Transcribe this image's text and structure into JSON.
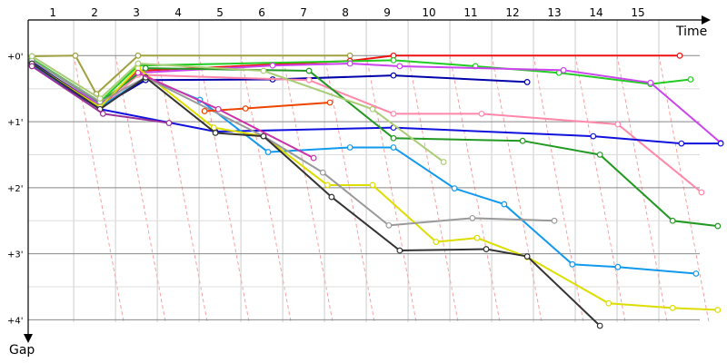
{
  "chart_data": {
    "type": "line",
    "x_label": "Time",
    "y_label": "Gap",
    "xlim": [
      -0.09,
      16.5
    ],
    "ylim": [
      -0.54,
      4.31
    ],
    "xticks": [
      {
        "value": 1,
        "label": "1"
      },
      {
        "value": 2,
        "label": "2"
      },
      {
        "value": 3,
        "label": "3"
      },
      {
        "value": 4,
        "label": "4"
      },
      {
        "value": 5,
        "label": "5"
      },
      {
        "value": 6,
        "label": "6"
      },
      {
        "value": 7,
        "label": "7"
      },
      {
        "value": 8,
        "label": "8"
      },
      {
        "value": 9,
        "label": "9"
      },
      {
        "value": 10,
        "label": "10"
      },
      {
        "value": 11,
        "label": "11"
      },
      {
        "value": 12,
        "label": "12"
      },
      {
        "value": 13,
        "label": "13"
      },
      {
        "value": 14,
        "label": "14"
      },
      {
        "value": 15,
        "label": "15"
      }
    ],
    "yticks": [
      {
        "value": 0,
        "label": "+0'"
      },
      {
        "value": 1,
        "label": "+1'"
      },
      {
        "value": 2,
        "label": "+2'"
      },
      {
        "value": 3,
        "label": "+3'"
      },
      {
        "value": 4,
        "label": "+4'"
      }
    ],
    "grid": true,
    "series": [
      {
        "color": "#a0a040",
        "x": [
          0,
          1.04,
          1.54,
          2.54,
          7.61
        ],
        "values": [
          0.01,
          0,
          0.58,
          0,
          0
        ]
      },
      {
        "color": "#ee1111",
        "x": [
          0,
          1.63,
          2.54,
          7.61,
          8.65,
          15.5
        ],
        "values": [
          0.1,
          0.78,
          0.23,
          0.08,
          0,
          0
        ]
      },
      {
        "color": "#22cc22",
        "x": [
          0,
          1.63,
          2.54,
          8.65,
          10.61,
          12.61,
          14.8,
          15.76
        ],
        "values": [
          0.05,
          0.7,
          0.15,
          0.07,
          0.16,
          0.26,
          0.43,
          0.36
        ]
      },
      {
        "color": "#cc44ee",
        "x": [
          0,
          1.63,
          2.54,
          5.76,
          7.61,
          8.8,
          12.72,
          14.8,
          16.48
        ],
        "values": [
          0.12,
          0.74,
          0.26,
          0.15,
          0.12,
          0.16,
          0.22,
          0.41,
          1.32
        ]
      },
      {
        "color": "#0000aa",
        "x": [
          0,
          1.63,
          2.72,
          5.76,
          8.65,
          11.85
        ],
        "values": [
          0.1,
          0.78,
          0.37,
          0.36,
          0.3,
          0.4
        ]
      },
      {
        "color": "#ff88aa",
        "x": [
          0,
          1.63,
          2.54,
          6.63,
          8.65,
          10.76,
          14.02,
          16.02
        ],
        "values": [
          0.12,
          0.81,
          0.29,
          0.37,
          0.88,
          0.88,
          1.04,
          2.07
        ]
      },
      {
        "color": "#1111dd",
        "x": [
          0,
          1.63,
          4.39,
          8.65,
          13.43,
          15.54,
          16.48
        ],
        "values": [
          0.15,
          0.81,
          1.15,
          1.09,
          1.22,
          1.33,
          1.33
        ]
      },
      {
        "color": "#229922",
        "x": [
          0,
          1.63,
          2.72,
          6.63,
          8.65,
          11.74,
          13.59,
          15.33,
          16.41
        ],
        "values": [
          0.07,
          0.71,
          0.19,
          0.23,
          1.25,
          1.29,
          1.5,
          2.5,
          2.58
        ]
      },
      {
        "color": "#1199ee",
        "x": [
          0,
          1.63,
          2.72,
          4.02,
          5.65,
          7.61,
          8.65,
          10.11,
          11.3,
          12.93,
          14.02,
          15.89
        ],
        "values": [
          0.15,
          0.78,
          0.33,
          0.67,
          1.46,
          1.39,
          1.39,
          2.01,
          2.25,
          3.16,
          3.2,
          3.3
        ]
      },
      {
        "color": "#dddd00",
        "x": [
          0,
          1.63,
          2.54,
          4.35,
          5.54,
          7.07,
          8.15,
          9.67,
          10.65,
          11.85,
          13.8,
          15.33,
          16.41
        ],
        "values": [
          0.12,
          0.78,
          0.19,
          1.09,
          1.22,
          1.96,
          1.96,
          2.82,
          2.76,
          3.05,
          3.75,
          3.82,
          3.85
        ]
      },
      {
        "color": "#999999",
        "x": [
          0,
          1.63,
          2.72,
          5.54,
          6.96,
          8.54,
          10.54,
          12.5
        ],
        "values": [
          0.07,
          0.7,
          0.33,
          1.22,
          1.77,
          2.57,
          2.46,
          2.5
        ]
      },
      {
        "color": "#333333",
        "x": [
          0,
          1.63,
          2.72,
          4.39,
          5.54,
          7.17,
          8.8,
          10.87,
          11.85,
          13.59
        ],
        "values": [
          0.12,
          0.81,
          0.33,
          1.17,
          1.22,
          2.14,
          2.95,
          2.93,
          3.04,
          4.09
        ]
      },
      {
        "color": "#aacc77",
        "x": [
          0,
          1.63,
          2.54,
          5.54,
          8.15,
          9.85
        ],
        "values": [
          0.01,
          0.65,
          0.12,
          0.23,
          0.81,
          1.61
        ]
      },
      {
        "color": "#ee4400",
        "x": [
          4.13,
          5.11,
          7.13
        ],
        "values": [
          0.84,
          0.8,
          0.71
        ]
      },
      {
        "color": "#993399",
        "x": [
          0,
          1.7,
          3.28
        ],
        "values": [
          0.16,
          0.88,
          1.02
        ]
      },
      {
        "color": "#cc33aa",
        "x": [
          2.54,
          4.46,
          6.74
        ],
        "values": [
          0.26,
          0.81,
          1.55
        ]
      }
    ]
  }
}
